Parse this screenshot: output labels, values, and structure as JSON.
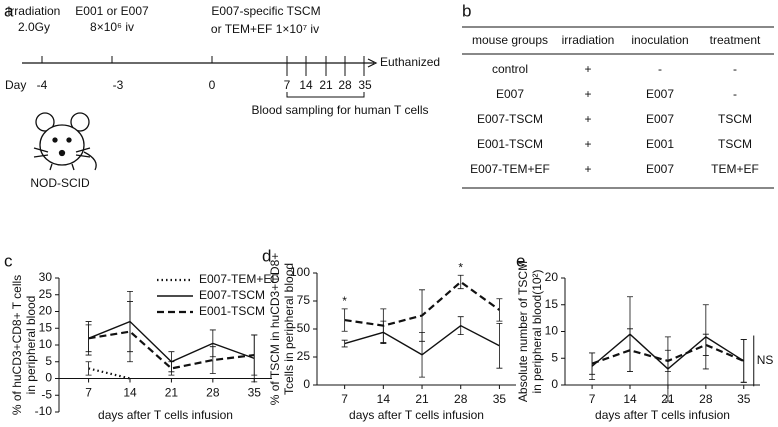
{
  "panel_a": {
    "letter": "a",
    "events": [
      "irradiation",
      "2.0Gy",
      "E001 or E007",
      "8×10⁶ iv",
      "E007-specific TSCM",
      "or TEM+EF 1×10⁷ iv",
      "Euthanized"
    ],
    "day_label": "Day",
    "days": [
      "-4",
      "-3",
      "0",
      "7",
      "14",
      "21",
      "28",
      "35"
    ],
    "sampling": "Blood sampling for human T cells",
    "mouse": "NOD-SCID"
  },
  "panel_b": {
    "letter": "b",
    "header": [
      "mouse groups",
      "irradiation",
      "inoculation",
      "treatment"
    ],
    "rows": [
      [
        "control",
        "+",
        "-",
        "-"
      ],
      [
        "E007",
        "+",
        "E007",
        "-"
      ],
      [
        "E007-TSCM",
        "+",
        "E007",
        "TSCM"
      ],
      [
        "E001-TSCM",
        "+",
        "E001",
        "TSCM"
      ],
      [
        "E007-TEM+EF",
        "+",
        "E007",
        "TEM+EF"
      ]
    ]
  },
  "chart_data": [
    {
      "type": "line",
      "title": "c",
      "ylabel": [
        "% of huCD3+CD8+ T cells",
        "in peripheral blood"
      ],
      "xlabel": "days after T cells infusion",
      "x": [
        7,
        14,
        21,
        28,
        35
      ],
      "xlim": [
        2,
        38
      ],
      "xticks": [
        7,
        14,
        21,
        28,
        35
      ],
      "ylim": [
        -10,
        30
      ],
      "yticks": [
        -10,
        -5,
        0,
        5,
        10,
        15,
        20,
        25,
        30
      ],
      "legend": "upper right",
      "series": [
        {
          "name": "E007-TEM+EF",
          "color": "#000000",
          "line_style": "dotted",
          "values": [
            3,
            0,
            null,
            null,
            null
          ],
          "errors": [
            2,
            null,
            null,
            null,
            null
          ]
        },
        {
          "name": "E007-TSCM",
          "color": "#000000",
          "line_style": "solid",
          "values": [
            12,
            17,
            5,
            10.5,
            6
          ],
          "errors": [
            5,
            9,
            3,
            4,
            7
          ]
        },
        {
          "name": "E001-TSCM",
          "color": "#000000",
          "line_style": "dashed",
          "values": [
            12,
            14,
            3,
            5.5,
            7
          ],
          "errors": [
            4,
            9,
            2,
            4,
            6
          ]
        }
      ]
    },
    {
      "type": "line",
      "title": "d",
      "ylabel": [
        "% of TSCM in huCD3+CD8+",
        "Tcells in peripheral blood"
      ],
      "xlabel": "days after T cells infusion",
      "x": [
        7,
        14,
        21,
        28,
        35
      ],
      "xlim": [
        2,
        38
      ],
      "xticks": [
        7,
        14,
        21,
        28,
        35
      ],
      "ylim": [
        0,
        100
      ],
      "yticks": [
        0,
        25,
        50,
        75,
        100
      ],
      "annotations": [
        {
          "text": "*",
          "x": 7
        },
        {
          "text": "*",
          "x": 28
        }
      ],
      "series": [
        {
          "name": "E007-TSCM",
          "color": "#000000",
          "line_style": "solid",
          "values": [
            37,
            47,
            27,
            53,
            35
          ],
          "errors": [
            3,
            10,
            20,
            8,
            20
          ]
        },
        {
          "name": "E001-TSCM",
          "color": "#000000",
          "line_style": "dashed",
          "values": [
            58,
            53,
            62,
            92,
            67
          ],
          "errors": [
            10,
            15,
            23,
            6,
            10
          ]
        }
      ]
    },
    {
      "type": "line",
      "title": "e",
      "ylabel": [
        "Absolute number of TSCM",
        "in peripheral blood(10²)"
      ],
      "xlabel": "days after T cells infusion",
      "x": [
        7,
        14,
        21,
        28,
        35
      ],
      "xlim": [
        2,
        38
      ],
      "xticks": [
        7,
        14,
        21,
        28,
        35
      ],
      "ylim": [
        0,
        20
      ],
      "yticks": [
        0,
        5,
        10,
        15,
        20
      ],
      "annotations": [
        {
          "text": "NS",
          "x": 35
        }
      ],
      "series": [
        {
          "name": "E007-TSCM",
          "color": "#000000",
          "line_style": "solid",
          "values": [
            3.5,
            9.5,
            3,
            9,
            4.5
          ],
          "errors": [
            2.5,
            7,
            6,
            6,
            4
          ]
        },
        {
          "name": "E001-TSCM",
          "color": "#000000",
          "line_style": "dashed",
          "values": [
            4,
            6.5,
            4.5,
            7.5,
            4.5
          ],
          "errors": [
            2,
            4,
            2,
            2,
            4
          ]
        }
      ]
    }
  ]
}
